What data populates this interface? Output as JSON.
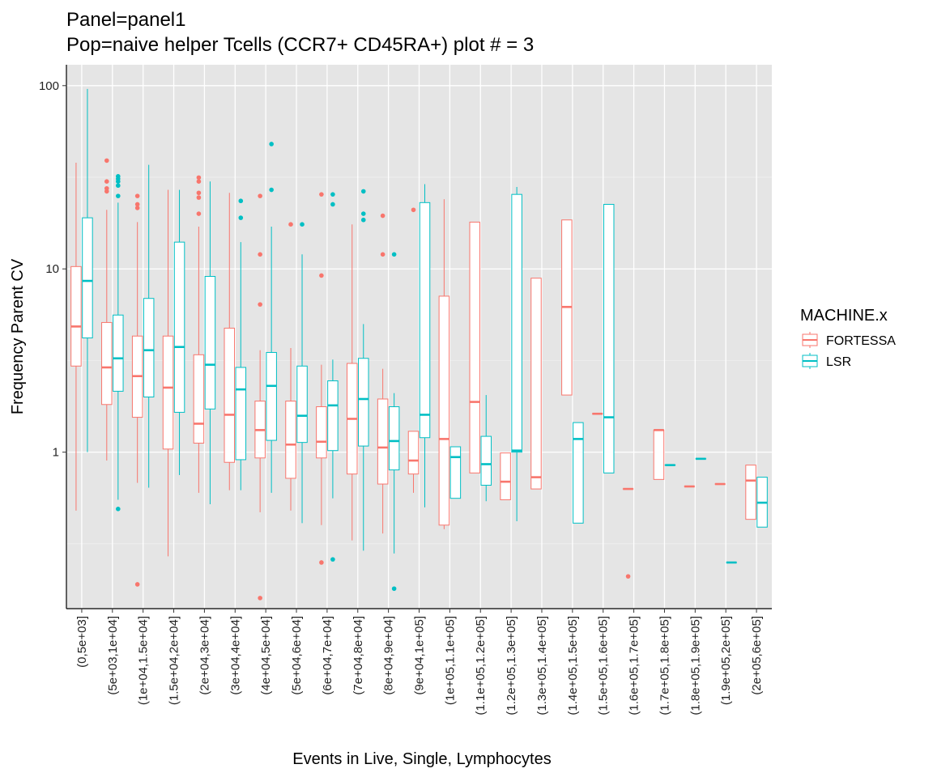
{
  "chart_data": {
    "type": "box",
    "title": "Panel=panel1",
    "subtitle": "Pop=naive helper Tcells (CCR7+ CD45RA+) plot # = 3",
    "xlabel": "Events in Live, Single, Lymphocytes",
    "ylabel": "Frequency Parent CV",
    "y_scale": "log10",
    "ylim": [
      0.14,
      130
    ],
    "y_ticks": [
      {
        "value": 1,
        "label": "1"
      },
      {
        "value": 10,
        "label": "10"
      },
      {
        "value": 100,
        "label": "100"
      }
    ],
    "categories": [
      "(0,5e+03]",
      "(5e+03,1e+04]",
      "(1e+04,1.5e+04]",
      "(1.5e+04,2e+04]",
      "(2e+04,3e+04]",
      "(3e+04,4e+04]",
      "(4e+04,5e+04]",
      "(5e+04,6e+04]",
      "(6e+04,7e+04]",
      "(7e+04,8e+04]",
      "(8e+04,9e+04]",
      "(9e+04,1e+05]",
      "(1e+05,1.1e+05]",
      "(1.1e+05,1.2e+05]",
      "(1.2e+05,1.3e+05]",
      "(1.3e+05,1.4e+05]",
      "(1.4e+05,1.5e+05]",
      "(1.5e+05,1.6e+05]",
      "(1.6e+05,1.7e+05]",
      "(1.7e+05,1.8e+05]",
      "(1.8e+05,1.9e+05]",
      "(1.9e+05,2e+05]",
      "(2e+05,6e+05]"
    ],
    "legend": {
      "title": "MACHINE.x",
      "position": "right"
    },
    "grid": true,
    "series": [
      {
        "name": "FORTESSA",
        "color": "#F8766D",
        "boxes": [
          {
            "cat": 0,
            "min": 0.48,
            "q1": 2.95,
            "median": 4.85,
            "q3": 10.3,
            "max": 38,
            "outliers": []
          },
          {
            "cat": 1,
            "min": 0.9,
            "q1": 1.82,
            "median": 2.9,
            "q3": 5.1,
            "max": 21,
            "outliers": [
              26.5,
              27.5,
              30,
              39
            ]
          },
          {
            "cat": 2,
            "min": 0.68,
            "q1": 1.55,
            "median": 2.6,
            "q3": 4.3,
            "max": 18,
            "outliers": [
              0.19,
              21.5,
              22.5,
              25
            ]
          },
          {
            "cat": 3,
            "min": 0.27,
            "q1": 1.04,
            "median": 2.25,
            "q3": 4.3,
            "max": 27,
            "outliers": []
          },
          {
            "cat": 4,
            "min": 0.6,
            "q1": 1.12,
            "median": 1.43,
            "q3": 3.4,
            "max": 17,
            "outliers": [
              20,
              24.5,
              26,
              30,
              31.5
            ]
          },
          {
            "cat": 5,
            "min": 0.62,
            "q1": 0.88,
            "median": 1.6,
            "q3": 4.75,
            "max": 26,
            "outliers": []
          },
          {
            "cat": 6,
            "min": 0.47,
            "q1": 0.93,
            "median": 1.32,
            "q3": 1.9,
            "max": 3.6,
            "outliers": [
              0.16,
              6.4,
              12,
              25
            ]
          },
          {
            "cat": 7,
            "min": 0.48,
            "q1": 0.72,
            "median": 1.1,
            "q3": 1.9,
            "max": 3.7,
            "outliers": [
              17.5
            ]
          },
          {
            "cat": 8,
            "min": 0.4,
            "q1": 0.93,
            "median": 1.14,
            "q3": 1.77,
            "max": 3.0,
            "outliers": [
              0.25,
              9.2,
              25.5
            ]
          },
          {
            "cat": 9,
            "min": 0.33,
            "q1": 0.76,
            "median": 1.52,
            "q3": 3.05,
            "max": 17.5,
            "outliers": []
          },
          {
            "cat": 10,
            "min": 0.36,
            "q1": 0.67,
            "median": 1.06,
            "q3": 1.95,
            "max": 2.85,
            "outliers": [
              12,
              19.5
            ]
          },
          {
            "cat": 11,
            "min": 0.6,
            "q1": 0.76,
            "median": 0.9,
            "q3": 1.3,
            "max": 1.3,
            "outliers": [
              21
            ]
          },
          {
            "cat": 12,
            "min": 0.38,
            "q1": 0.4,
            "median": 1.18,
            "q3": 7.1,
            "max": 24,
            "outliers": []
          },
          {
            "cat": 13,
            "min": 0.77,
            "q1": 0.77,
            "median": 1.88,
            "q3": 18,
            "max": 18,
            "outliers": []
          },
          {
            "cat": 14,
            "min": 0.55,
            "q1": 0.55,
            "median": 0.69,
            "q3": 0.99,
            "max": 0.99,
            "outliers": []
          },
          {
            "cat": 15,
            "min": 0.63,
            "q1": 0.63,
            "median": 0.73,
            "q3": 8.9,
            "max": 8.9,
            "outliers": []
          },
          {
            "cat": 16,
            "min": 2.05,
            "q1": 2.05,
            "median": 6.2,
            "q3": 18.5,
            "max": 18.5,
            "outliers": []
          },
          {
            "cat": 17,
            "min": 1.62,
            "q1": 1.62,
            "median": 1.62,
            "q3": 1.62,
            "max": 1.62,
            "outliers": []
          },
          {
            "cat": 18,
            "min": 0.63,
            "q1": 0.63,
            "median": 0.63,
            "q3": 0.63,
            "max": 0.63,
            "outliers": [
              0.21
            ]
          },
          {
            "cat": 19,
            "min": 0.71,
            "q1": 0.71,
            "median": 1.32,
            "q3": 1.32,
            "max": 1.32,
            "outliers": []
          },
          {
            "cat": 20,
            "min": 0.65,
            "q1": 0.65,
            "median": 0.65,
            "q3": 0.65,
            "max": 0.65,
            "outliers": []
          },
          {
            "cat": 21,
            "min": 0.67,
            "q1": 0.67,
            "median": 0.67,
            "q3": 0.67,
            "max": 0.67,
            "outliers": []
          },
          {
            "cat": 22,
            "min": 0.43,
            "q1": 0.43,
            "median": 0.7,
            "q3": 0.85,
            "max": 0.85,
            "outliers": []
          }
        ]
      },
      {
        "name": "LSR",
        "color": "#00BFC4",
        "boxes": [
          {
            "cat": 0,
            "min": 1.0,
            "q1": 4.2,
            "median": 8.6,
            "q3": 19,
            "max": 96,
            "outliers": []
          },
          {
            "cat": 1,
            "min": 0.55,
            "q1": 2.15,
            "median": 3.25,
            "q3": 5.6,
            "max": 23,
            "outliers": [
              0.49,
              25,
              28.5,
              30,
              31,
              32
            ]
          },
          {
            "cat": 2,
            "min": 0.64,
            "q1": 2.0,
            "median": 3.6,
            "q3": 6.9,
            "max": 37,
            "outliers": []
          },
          {
            "cat": 3,
            "min": 0.75,
            "q1": 1.65,
            "median": 3.75,
            "q3": 14,
            "max": 27,
            "outliers": []
          },
          {
            "cat": 4,
            "min": 0.52,
            "q1": 1.72,
            "median": 3.0,
            "q3": 9.1,
            "max": 30,
            "outliers": []
          },
          {
            "cat": 5,
            "min": 0.62,
            "q1": 0.91,
            "median": 2.2,
            "q3": 2.9,
            "max": 14,
            "outliers": [
              19,
              23.5
            ]
          },
          {
            "cat": 6,
            "min": 0.6,
            "q1": 1.16,
            "median": 2.3,
            "q3": 3.5,
            "max": 17,
            "outliers": [
              27,
              48
            ]
          },
          {
            "cat": 7,
            "min": 0.41,
            "q1": 1.13,
            "median": 1.58,
            "q3": 2.95,
            "max": 12,
            "outliers": [
              17.5
            ]
          },
          {
            "cat": 8,
            "min": 0.56,
            "q1": 1.02,
            "median": 1.8,
            "q3": 2.45,
            "max": 3.2,
            "outliers": [
              0.26,
              22.5,
              25.5
            ]
          },
          {
            "cat": 9,
            "min": 0.29,
            "q1": 1.08,
            "median": 1.95,
            "q3": 3.25,
            "max": 5.0,
            "outliers": [
              18.5,
              20,
              26.5
            ]
          },
          {
            "cat": 10,
            "min": 0.28,
            "q1": 0.8,
            "median": 1.15,
            "q3": 1.77,
            "max": 2.1,
            "outliers": [
              0.18,
              12
            ]
          },
          {
            "cat": 11,
            "min": 0.5,
            "q1": 1.2,
            "median": 1.6,
            "q3": 23,
            "max": 29,
            "outliers": []
          },
          {
            "cat": 12,
            "min": 0.56,
            "q1": 0.56,
            "median": 0.94,
            "q3": 1.07,
            "max": 1.07,
            "outliers": []
          },
          {
            "cat": 13,
            "min": 0.54,
            "q1": 0.66,
            "median": 0.86,
            "q3": 1.22,
            "max": 2.05,
            "outliers": []
          },
          {
            "cat": 14,
            "min": 0.42,
            "q1": 1.0,
            "median": 1.02,
            "q3": 25.5,
            "max": 28,
            "outliers": []
          },
          {
            "cat": 16,
            "min": 0.41,
            "q1": 0.41,
            "median": 1.18,
            "q3": 1.45,
            "max": 1.45,
            "outliers": []
          },
          {
            "cat": 17,
            "min": 0.77,
            "q1": 0.77,
            "median": 1.55,
            "q3": 22.5,
            "max": 22.5,
            "outliers": []
          },
          {
            "cat": 19,
            "min": 0.85,
            "q1": 0.85,
            "median": 0.85,
            "q3": 0.85,
            "max": 0.85,
            "outliers": []
          },
          {
            "cat": 20,
            "min": 0.92,
            "q1": 0.92,
            "median": 0.92,
            "q3": 0.92,
            "max": 0.92,
            "outliers": []
          },
          {
            "cat": 21,
            "min": 0.25,
            "q1": 0.25,
            "median": 0.25,
            "q3": 0.25,
            "max": 0.25,
            "outliers": []
          },
          {
            "cat": 22,
            "min": 0.39,
            "q1": 0.39,
            "median": 0.53,
            "q3": 0.73,
            "max": 0.73,
            "outliers": []
          }
        ]
      }
    ]
  }
}
